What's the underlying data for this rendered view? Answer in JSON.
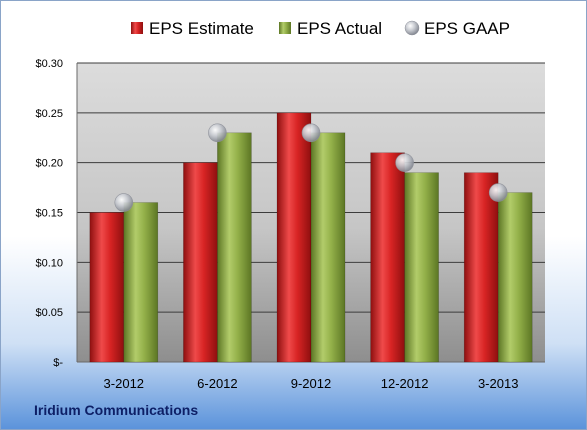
{
  "company": "Iridium Communications",
  "chart_data": {
    "type": "bar",
    "categories": [
      "3-2012",
      "6-2012",
      "9-2012",
      "12-2012",
      "3-2013"
    ],
    "series": [
      {
        "name": "EPS Estimate",
        "values": [
          0.15,
          0.2,
          0.25,
          0.21,
          0.19
        ],
        "color": "#d42a2a",
        "kind": "bar"
      },
      {
        "name": "EPS Actual",
        "values": [
          0.16,
          0.23,
          0.23,
          0.19,
          0.17
        ],
        "color": "#8aaa3e",
        "kind": "bar"
      },
      {
        "name": "EPS GAAP",
        "values": [
          0.16,
          0.23,
          0.23,
          0.2,
          0.17
        ],
        "color": "#b9bcc4",
        "kind": "marker"
      }
    ],
    "ylim": [
      0,
      0.3
    ],
    "yticks": [
      0,
      0.05,
      0.1,
      0.15,
      0.2,
      0.25,
      0.3
    ],
    "ytick_labels": [
      "$-",
      "$0.05",
      "$0.10",
      "$0.15",
      "$0.20",
      "$0.25",
      "$0.30"
    ],
    "grid": true,
    "legend_position": "top"
  }
}
